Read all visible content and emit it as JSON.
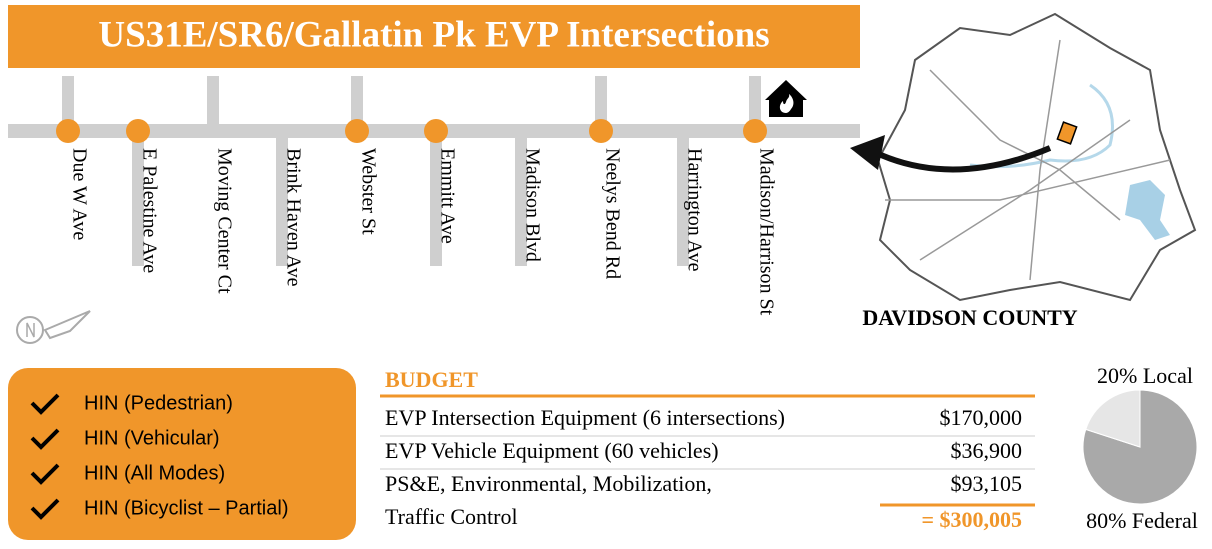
{
  "title": "US31E/SR6/Gallatin Pk EVP Intersections",
  "streets": [
    {
      "name": "Due W Ave",
      "evp": true
    },
    {
      "name": "E Palestine Ave",
      "evp": true
    },
    {
      "name": "Moving Center Ct",
      "evp": false
    },
    {
      "name": "Brink Haven Ave",
      "evp": false
    },
    {
      "name": "Webster St",
      "evp": true
    },
    {
      "name": "Emmitt Ave",
      "evp": true
    },
    {
      "name": "Madison Blvd",
      "evp": false
    },
    {
      "name": "Neelys Bend Rd",
      "evp": true
    },
    {
      "name": "Harrington Ave",
      "evp": false
    },
    {
      "name": "Madison/Harrison St",
      "evp": true
    }
  ],
  "map_label": "DAVIDSON COUNTY",
  "checklist": [
    "HIN (Pedestrian)",
    "HIN (Vehicular)",
    "HIN (All Modes)",
    "HIN (Bicyclist – Partial)"
  ],
  "budget": {
    "heading": "BUDGET",
    "rows": [
      [
        "EVP Intersection Equipment (6 intersections)",
        "$170,000"
      ],
      [
        "EVP Vehicle Equipment (60 vehicles)",
        "$36,900"
      ],
      [
        "PS&E, Environmental, Mobilization,",
        "$93,105"
      ],
      [
        "Traffic Control",
        ""
      ]
    ],
    "total": "= $300,005"
  },
  "chart_data": {
    "type": "pie",
    "categories": [
      "Local",
      "Federal"
    ],
    "values": [
      20,
      80
    ],
    "value_labels": [
      "20% Local",
      "80% Federal"
    ],
    "colors": [
      "#e6e6e6",
      "#a9a9a9"
    ]
  }
}
